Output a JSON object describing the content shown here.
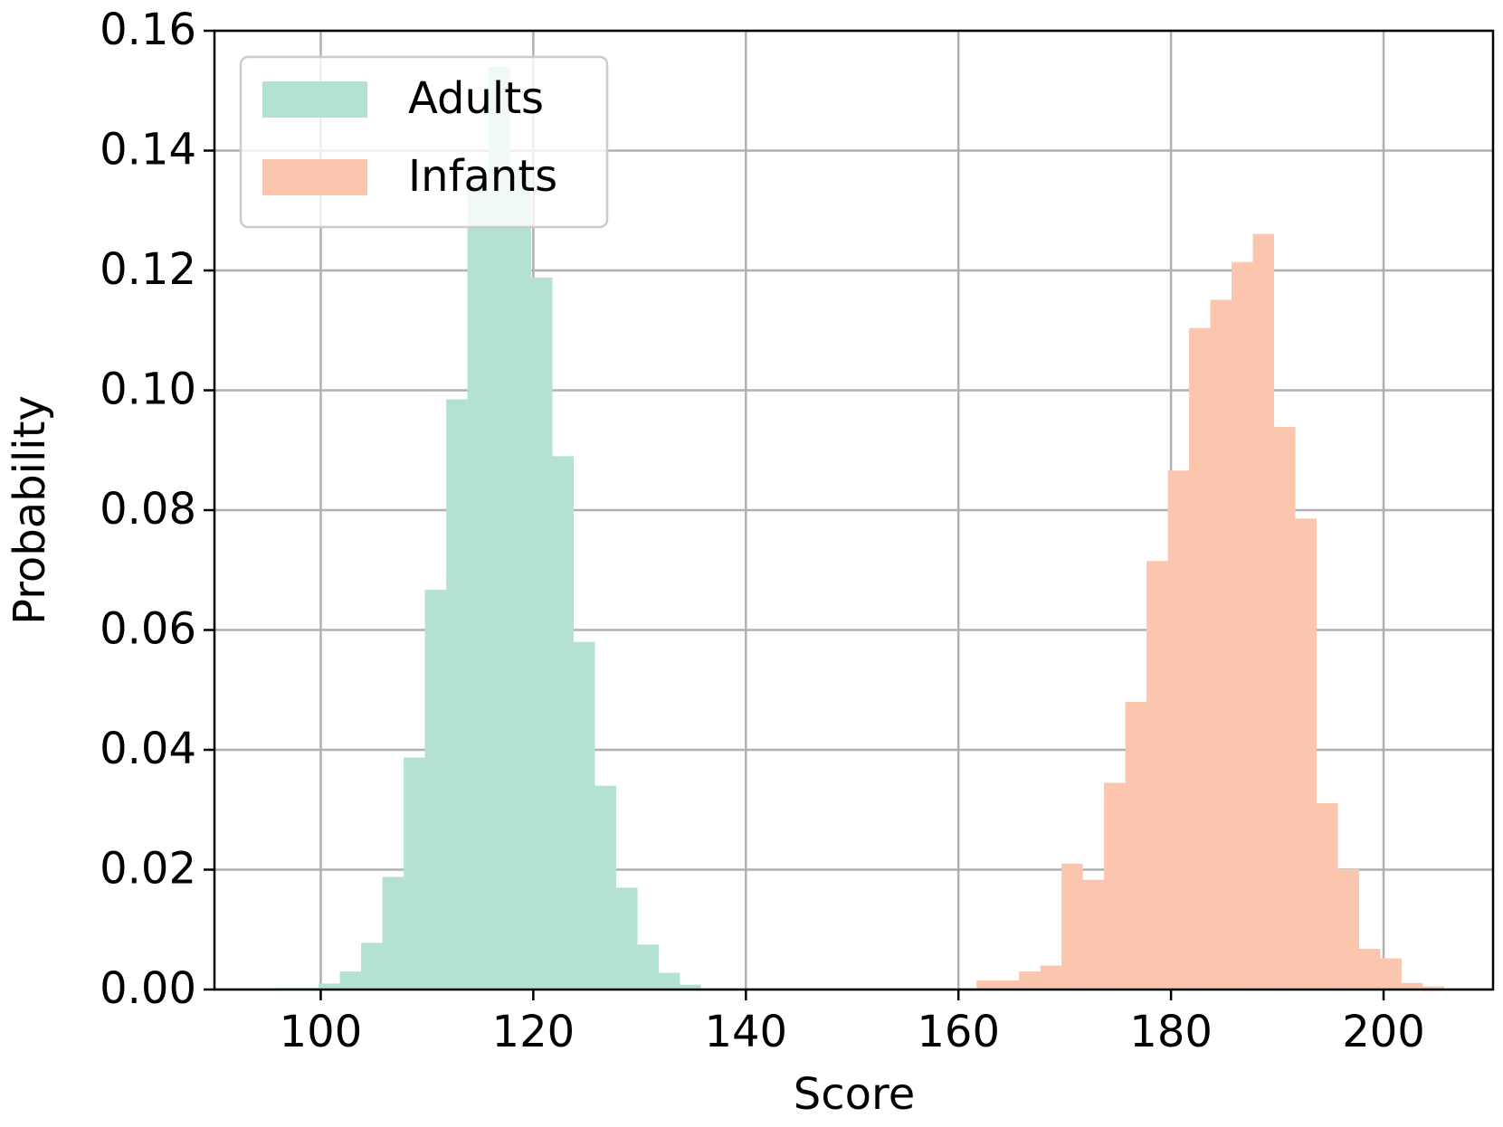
{
  "chart_data": {
    "type": "histogram",
    "xlabel": "Score",
    "ylabel": "Probability",
    "series": [
      {
        "name": "Adults",
        "color": "#b3e2d4",
        "bins": [
          95.8,
          97.8,
          99.8,
          101.8,
          103.8,
          105.8,
          107.8,
          109.8,
          111.8,
          113.8,
          115.8,
          117.8,
          119.8,
          121.8,
          123.8,
          125.8,
          127.8,
          129.8,
          131.8,
          133.8,
          135.8
        ],
        "values": [
          0.0003,
          0.0003,
          0.001,
          0.003,
          0.0078,
          0.0188,
          0.0387,
          0.0667,
          0.0985,
          0.135,
          0.154,
          0.137,
          0.1188,
          0.089,
          0.058,
          0.034,
          0.017,
          0.0075,
          0.0028,
          0.0008
        ]
      },
      {
        "name": "Infants",
        "color": "#fbc5ae",
        "bins": [
          161.7,
          163.7,
          165.7,
          167.7,
          169.7,
          171.7,
          173.7,
          175.7,
          177.7,
          179.7,
          181.7,
          183.7,
          185.7,
          187.7,
          189.7,
          191.7,
          193.7,
          195.7,
          197.7,
          199.7,
          201.7,
          203.7,
          205.7
        ],
        "values": [
          0.0015,
          0.0015,
          0.003,
          0.004,
          0.021,
          0.0183,
          0.0345,
          0.048,
          0.0715,
          0.0866,
          0.1104,
          0.1151,
          0.1214,
          0.1261,
          0.0939,
          0.0786,
          0.0311,
          0.0201,
          0.0068,
          0.0052,
          0.0011,
          0.0005
        ]
      }
    ],
    "xlim": [
      90,
      210.3
    ],
    "xticks": [
      100,
      120,
      140,
      160,
      180,
      200
    ],
    "ylim": [
      0,
      0.16
    ],
    "yticks": [
      {
        "value": 0,
        "label": "0.00"
      },
      0.02,
      0.04,
      0.06,
      0.08,
      {
        "value": 0.1,
        "label": "0.10"
      },
      0.12,
      0.14,
      0.16
    ],
    "grid": true,
    "legend": "upper-left"
  }
}
